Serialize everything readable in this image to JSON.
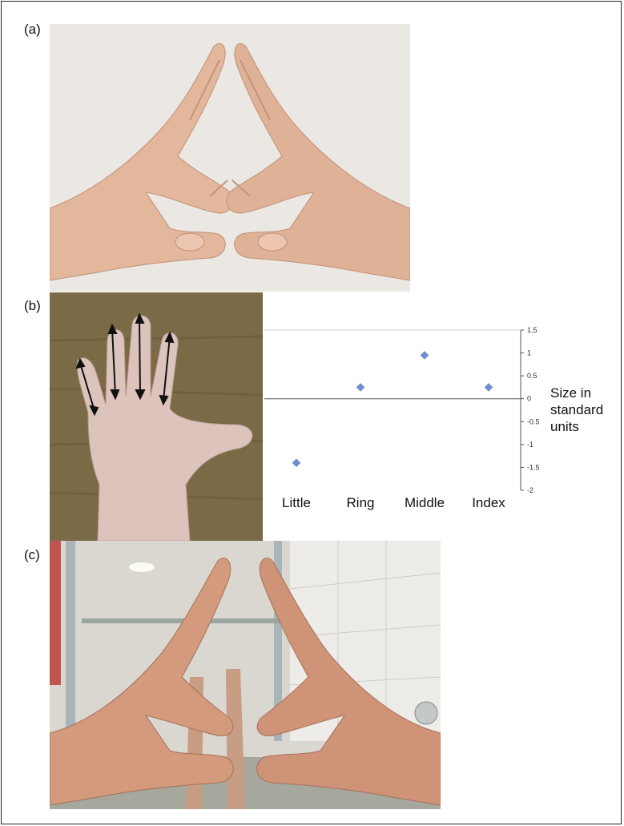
{
  "figure": {
    "panels": [
      {
        "id": "a",
        "label": "(a)",
        "photo": "hands-triangle-white-background"
      },
      {
        "id": "b",
        "label": "(b)",
        "photo": "palm-finger-length-measurement"
      },
      {
        "id": "c",
        "label": "(c)",
        "photo": "hands-triangle-bathroom"
      }
    ]
  },
  "colors": {
    "marker": "#6f8fd0",
    "axis": "#555555",
    "grid": "#d0d0d0",
    "wood": "#7a6a45",
    "skin": "#e6bfa7"
  },
  "chart_data": {
    "type": "scatter",
    "categories": [
      "Little",
      "Ring",
      "Middle",
      "Index"
    ],
    "values": [
      -1.4,
      0.25,
      0.95,
      0.25
    ],
    "ylabel": "Size in standard units",
    "ylim": [
      -2,
      1.5
    ],
    "yticks": [
      "1.5",
      "1",
      "0.5",
      "0",
      "-0.5",
      "-1",
      "-1.5",
      "-2"
    ],
    "ytick_values": [
      1.5,
      1,
      0.5,
      0,
      -0.5,
      -1,
      -1.5,
      -2
    ],
    "y_axis_side": "right",
    "grid": false,
    "legend": "none"
  }
}
